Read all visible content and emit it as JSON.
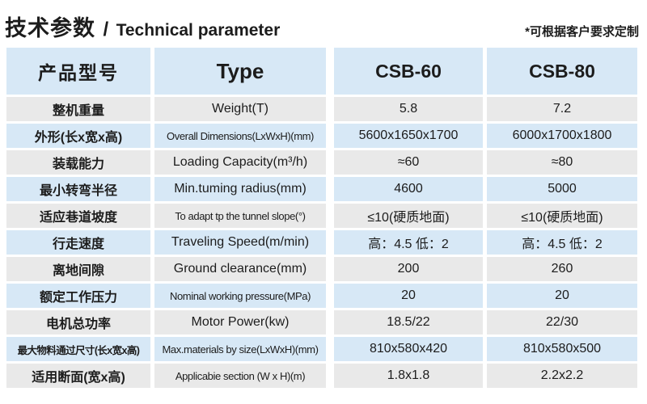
{
  "header": {
    "title_cn": "技术参数",
    "title_sep": "/",
    "title_en": "Technical parameter",
    "note": "*可根据客户要求定制"
  },
  "colors": {
    "row_blue": "#d7e8f6",
    "row_gray": "#e9e9e9",
    "header_blue": "#d7e8f6",
    "text": "#1c1c1c"
  },
  "table": {
    "columns": [
      {
        "key": "cn",
        "label": "产品型号"
      },
      {
        "key": "en",
        "label": "Type"
      },
      {
        "key": "csb60",
        "label": "CSB-60"
      },
      {
        "key": "csb80",
        "label": "CSB-80"
      }
    ],
    "rows": [
      {
        "cn": "整机重量",
        "en": "Weight(T)",
        "csb60": "5.8",
        "csb80": "7.2"
      },
      {
        "cn": "外形(长x宽x高)",
        "en": "Overall Dimensions(LxWxH)(mm)",
        "csb60": "5600x1650x1700",
        "csb80": "6000x1700x1800"
      },
      {
        "cn": "装载能力",
        "en": "Loading Capacity(m³/h)",
        "csb60": "≈60",
        "csb80": "≈80"
      },
      {
        "cn": "最小转弯半径",
        "en": "Min.tuming radius(mm)",
        "csb60": "4600",
        "csb80": "5000"
      },
      {
        "cn": "适应巷道坡度",
        "en": "To adapt tp the tunnel slope(°)",
        "csb60": "≤10(硬质地面)",
        "csb80": "≤10(硬质地面)"
      },
      {
        "cn": "行走速度",
        "en": "Traveling Speed(m/min)",
        "csb60": "高：4.5 低：2",
        "csb80": "高：4.5 低：2"
      },
      {
        "cn": "离地间隙",
        "en": "Ground clearance(mm)",
        "csb60": "200",
        "csb80": "260"
      },
      {
        "cn": "额定工作压力",
        "en": "Nominal working pressure(MPa)",
        "csb60": "20",
        "csb80": "20"
      },
      {
        "cn": "电机总功率",
        "en": "Motor Power(kw)",
        "csb60": "18.5/22",
        "csb80": "22/30"
      },
      {
        "cn": "最大物料通过尺寸(长x宽x高)",
        "en": "Max.materials by size(LxWxH)(mm)",
        "csb60": "810x580x420",
        "csb80": "810x580x500"
      },
      {
        "cn": "适用断面(宽x高)",
        "en": "Applicabie section (W x H)(m)",
        "csb60": "1.8x1.8",
        "csb80": "2.2x2.2"
      }
    ]
  }
}
